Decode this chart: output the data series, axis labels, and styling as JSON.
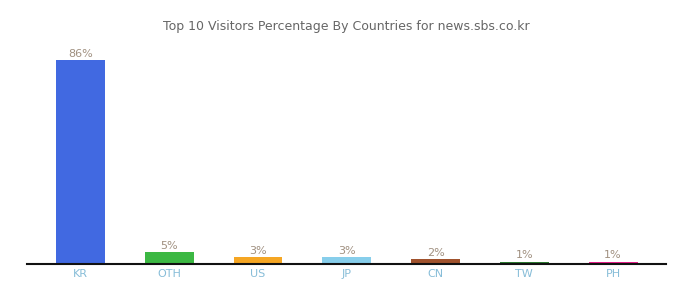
{
  "categories": [
    "KR",
    "OTH",
    "US",
    "JP",
    "CN",
    "TW",
    "PH"
  ],
  "values": [
    86,
    5,
    3,
    3,
    2,
    1,
    1
  ],
  "bar_colors": [
    "#4169e1",
    "#3cb843",
    "#f5a623",
    "#87ceeb",
    "#a0522d",
    "#2e7d32",
    "#e91e8c"
  ],
  "label_color": "#a09080",
  "tick_color": "#87bdd8",
  "title": "Top 10 Visitors Percentage By Countries for news.sbs.co.kr",
  "title_fontsize": 9,
  "bar_label_fontsize": 8,
  "xlabel_fontsize": 8,
  "ylim": [
    0,
    96
  ],
  "background_color": "#ffffff",
  "bar_width": 0.55
}
